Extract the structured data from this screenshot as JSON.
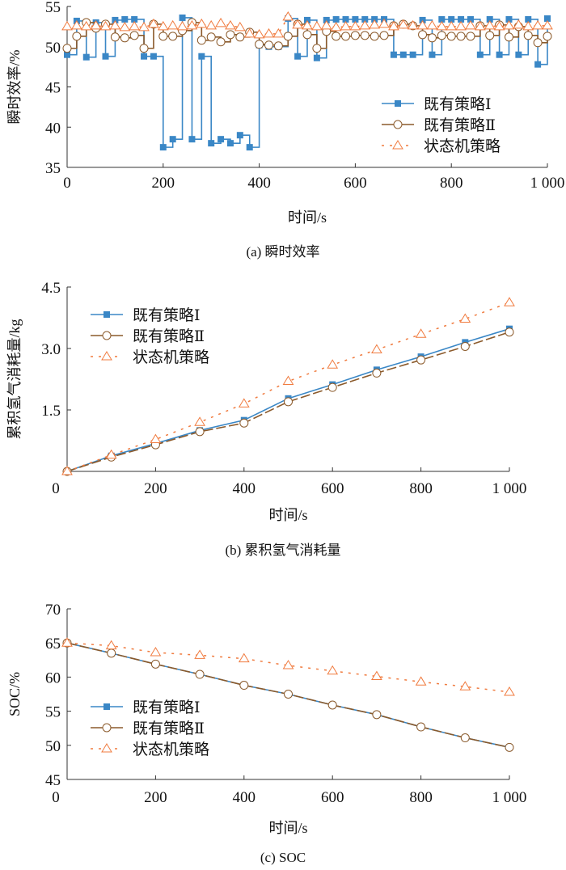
{
  "legend": [
    "既有策略Ⅰ",
    "既有策略Ⅱ",
    "状态机策略"
  ],
  "colors": {
    "s1": "#3a87c6",
    "s2": "#8b5a2b",
    "s3": "#f07b3f"
  },
  "chart_data": [
    {
      "type": "line",
      "title": "(a)  瞬时效率",
      "xlabel": "时间/s",
      "ylabel": "瞬时效率/%",
      "xlim": [
        0,
        1000
      ],
      "ylim": [
        35,
        55
      ],
      "xticks": [
        "0",
        "200",
        "400",
        "600",
        "800",
        "1 000"
      ],
      "xtickvals": [
        0,
        200,
        400,
        600,
        800,
        1000
      ],
      "yticks": [
        "35",
        "40",
        "45",
        "50",
        "55"
      ],
      "ytickvals": [
        35,
        40,
        45,
        50,
        55
      ],
      "x": [
        0,
        20,
        40,
        60,
        80,
        100,
        120,
        140,
        160,
        180,
        200,
        220,
        240,
        260,
        280,
        300,
        320,
        340,
        360,
        380,
        400,
        420,
        440,
        460,
        480,
        500,
        520,
        540,
        560,
        580,
        600,
        620,
        640,
        660,
        680,
        700,
        720,
        740,
        760,
        780,
        800,
        820,
        840,
        860,
        880,
        900,
        920,
        940,
        960,
        980,
        1000
      ],
      "series": [
        {
          "name": "既有策略Ⅰ",
          "values": [
            49,
            53.2,
            48.7,
            53,
            48.8,
            53.3,
            53.4,
            53.4,
            48.8,
            48.8,
            37.5,
            38.5,
            53.6,
            38.5,
            48.8,
            38,
            38.5,
            38,
            39,
            37.5,
            50.2,
            50,
            50,
            53.5,
            48.8,
            53.3,
            48.6,
            53.3,
            53.4,
            53.4,
            53.4,
            53.4,
            53.4,
            53.4,
            49,
            49,
            49,
            53.3,
            49,
            53.4,
            53.4,
            53.4,
            53.4,
            49,
            53.4,
            49,
            53.4,
            49,
            53.4,
            47.8,
            53.5
          ]
        },
        {
          "name": "既有策略Ⅱ",
          "values": [
            49.8,
            51.3,
            53,
            52.3,
            52.8,
            51.2,
            51.1,
            51.4,
            49.8,
            52.8,
            51.3,
            51.3,
            52,
            53,
            50.8,
            51.2,
            50.6,
            51.5,
            51.2,
            51.8,
            50.3,
            50.2,
            50.1,
            51.3,
            52.8,
            51.5,
            49.8,
            51.9,
            51.3,
            51.3,
            51.4,
            51.4,
            51.3,
            51.4,
            52.6,
            52.8,
            52.6,
            51.5,
            51.1,
            51.4,
            51.3,
            51.3,
            51.3,
            52.6,
            51.4,
            52.7,
            51.2,
            52.5,
            51.4,
            50.5,
            51.3
          ]
        },
        {
          "name": "状态机策略",
          "values": [
            52.5,
            52.6,
            52.5,
            52.6,
            52.5,
            52.6,
            52.4,
            52.5,
            52.4,
            52.8,
            52.5,
            52.6,
            52.5,
            52.6,
            52.8,
            52.6,
            52.9,
            52.6,
            52.4,
            51.6,
            51.5,
            51.6,
            51.6,
            53.7,
            52.7,
            52.6,
            52.5,
            52.6,
            52.4,
            52.5,
            52.5,
            52.6,
            52.7,
            52.8,
            52.5,
            52.7,
            52.6,
            52.6,
            52.6,
            52.5,
            52.5,
            52.5,
            52.6,
            52.5,
            52.6,
            52.5,
            52.6,
            52.7,
            52.5,
            52.6,
            52.6
          ]
        }
      ]
    },
    {
      "type": "line",
      "title": "(b)  累积氢气消耗量",
      "xlabel": "时间/s",
      "ylabel": "累积氢气消耗量/kg",
      "xlim": [
        0,
        1000
      ],
      "ylim": [
        0,
        4.5
      ],
      "xticks": [
        "0",
        "200",
        "400",
        "600",
        "800",
        "1 000"
      ],
      "xtickvals": [
        0,
        200,
        400,
        600,
        800,
        1000
      ],
      "yticks": [
        "1.5",
        "3.0",
        "4.5"
      ],
      "ytickvals": [
        1.5,
        3.0,
        4.5
      ],
      "x": [
        0,
        100,
        200,
        300,
        400,
        500,
        600,
        700,
        800,
        900,
        1000
      ],
      "series": [
        {
          "name": "既有策略Ⅰ",
          "values": [
            0,
            0.38,
            0.68,
            1.0,
            1.25,
            1.78,
            2.12,
            2.48,
            2.8,
            3.15,
            3.48
          ]
        },
        {
          "name": "既有策略Ⅱ",
          "values": [
            0,
            0.35,
            0.65,
            0.97,
            1.18,
            1.7,
            2.05,
            2.4,
            2.72,
            3.05,
            3.4
          ]
        },
        {
          "name": "状态机策略",
          "values": [
            0,
            0.4,
            0.78,
            1.2,
            1.65,
            2.2,
            2.6,
            2.97,
            3.35,
            3.72,
            4.12
          ]
        }
      ]
    },
    {
      "type": "line",
      "title": "(c)  SOC",
      "xlabel": "时间/s",
      "ylabel": "SOC/%",
      "xlim": [
        0,
        1000
      ],
      "ylim": [
        45,
        70
      ],
      "xticks": [
        "0",
        "200",
        "400",
        "600",
        "800",
        "1 000"
      ],
      "xtickvals": [
        0,
        200,
        400,
        600,
        800,
        1000
      ],
      "yticks": [
        "45",
        "50",
        "55",
        "60",
        "65",
        "70"
      ],
      "ytickvals": [
        45,
        50,
        55,
        60,
        65,
        70
      ],
      "x": [
        0,
        100,
        200,
        300,
        400,
        500,
        600,
        700,
        800,
        900,
        1000
      ],
      "series": [
        {
          "name": "既有策略Ⅰ",
          "values": [
            65,
            63.5,
            61.9,
            60.4,
            58.8,
            57.5,
            55.9,
            54.5,
            52.7,
            51.1,
            49.7
          ]
        },
        {
          "name": "既有策略Ⅱ",
          "values": [
            65,
            63.5,
            61.9,
            60.4,
            58.8,
            57.5,
            55.9,
            54.5,
            52.7,
            51.1,
            49.7
          ]
        },
        {
          "name": "状态机策略",
          "values": [
            65,
            64.6,
            63.6,
            63.2,
            62.7,
            61.7,
            60.9,
            60.1,
            59.3,
            58.6,
            57.8
          ]
        }
      ]
    }
  ]
}
